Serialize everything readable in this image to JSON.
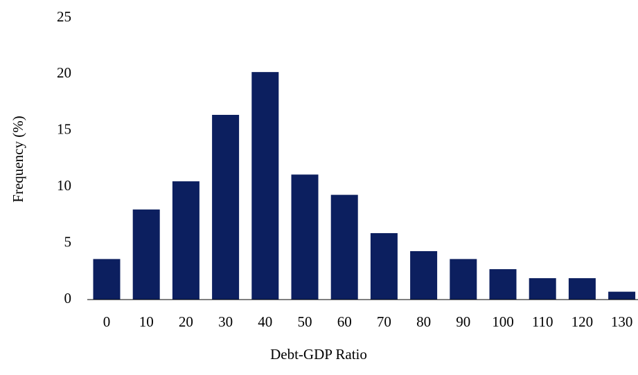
{
  "chart_data": {
    "type": "bar",
    "xlabel": "Debt-GDP Ratio",
    "ylabel": "Frequency (%)",
    "categories": [
      "0",
      "10",
      "20",
      "30",
      "40",
      "50",
      "60",
      "70",
      "80",
      "90",
      "100",
      "110",
      "120",
      "130"
    ],
    "values": [
      3.6,
      8.0,
      10.5,
      16.4,
      20.2,
      11.1,
      9.3,
      5.9,
      4.3,
      3.6,
      2.7,
      1.9,
      1.9,
      0.7
    ],
    "color": "#0c1f5f",
    "ylim": [
      0,
      25
    ],
    "yticks": [
      0,
      5,
      10,
      15,
      20,
      25
    ],
    "grid": false
  }
}
